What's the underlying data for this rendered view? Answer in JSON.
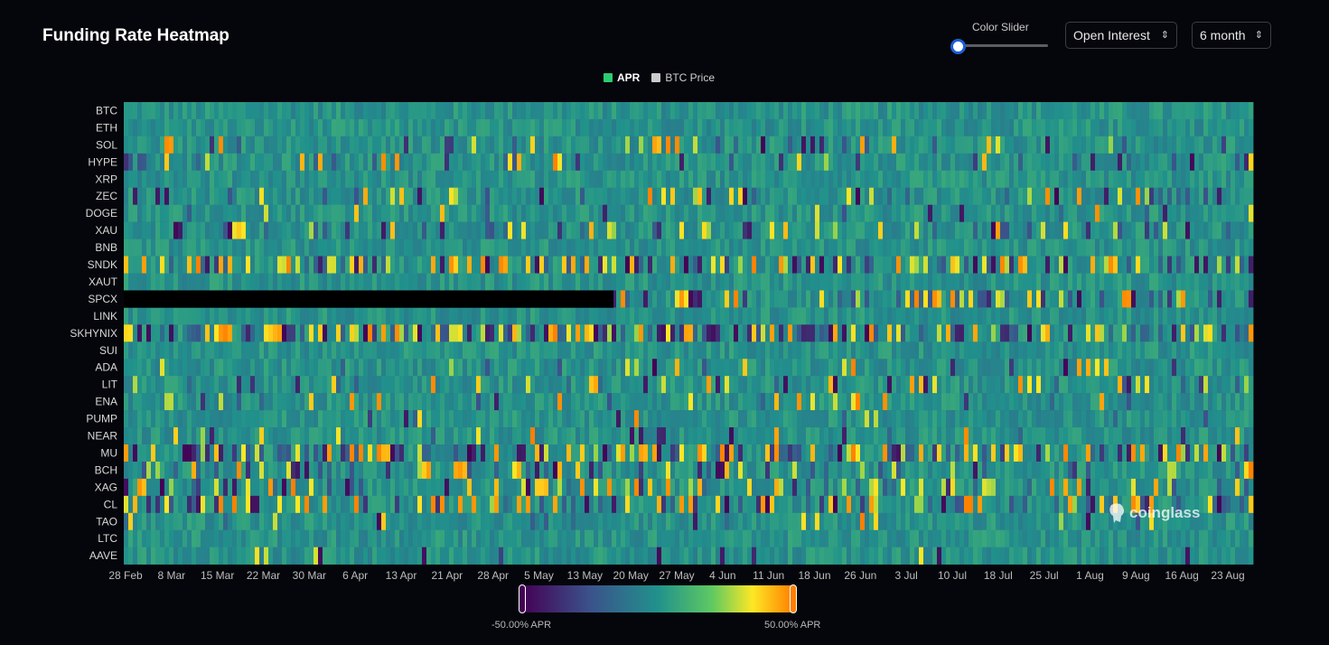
{
  "header": {
    "title": "Funding Rate Heatmap",
    "slider_label": "Color Slider",
    "metric_select": "Open Interest",
    "range_select": "6 month"
  },
  "legend": [
    {
      "label": "APR",
      "color": "#2ecc71",
      "active": true
    },
    {
      "label": "BTC Price",
      "color": "#cccccc",
      "active": false
    }
  ],
  "colors": {
    "background": "#05060b",
    "scale": [
      "#440154",
      "#3b528b",
      "#21918c",
      "#5ec962",
      "#fde725",
      "#ff7f00"
    ]
  },
  "brand": "coinglass",
  "colorbar": {
    "min_label": "-50.00% APR",
    "max_label": "50.00% APR"
  },
  "chart_data": {
    "type": "heatmap",
    "title": "Funding Rate Heatmap",
    "value_unit": "APR %",
    "value_range": [
      -50,
      50
    ],
    "rows": [
      "BTC",
      "ETH",
      "SOL",
      "HYPE",
      "XRP",
      "ZEC",
      "DOGE",
      "XAU",
      "BNB",
      "SNDK",
      "XAUT",
      "SPCX",
      "LINK",
      "SKHYNIX",
      "SUI",
      "ADA",
      "LIT",
      "ENA",
      "PUMP",
      "NEAR",
      "MU",
      "BCH",
      "XAG",
      "CL",
      "TAO",
      "LTC",
      "AAVE"
    ],
    "x_ticks": [
      "28 Feb",
      "8 Mar",
      "15 Mar",
      "22 Mar",
      "30 Mar",
      "6 Apr",
      "13 Apr",
      "21 Apr",
      "28 Apr",
      "5 May",
      "13 May",
      "20 May",
      "27 May",
      "4 Jun",
      "11 Jun",
      "18 Jun",
      "26 Jun",
      "3 Jul",
      "10 Jul",
      "18 Jul",
      "25 Jul",
      "1 Aug",
      "9 Aug",
      "16 Aug",
      "23 Aug"
    ],
    "no_data": [
      {
        "row": "SPCX",
        "from": "28 Feb",
        "to": "19 May"
      }
    ],
    "row_profiles": {
      "BTC": 0,
      "ETH": 0,
      "SOL": 0.2,
      "HYPE": 0.2,
      "XRP": 0,
      "ZEC": 0.3,
      "DOGE": 0.1,
      "XAU": 0.3,
      "BNB": 0,
      "SNDK": 0.6,
      "XAUT": 0,
      "SPCX": 0.5,
      "LINK": 0,
      "SKHYNIX": 0.8,
      "SUI": 0,
      "ADA": 0.1,
      "LIT": 0.2,
      "ENA": 0.1,
      "PUMP": 0.1,
      "NEAR": 0.1,
      "MU": 0.6,
      "BCH": 0.3,
      "XAG": 0.4,
      "CL": 0.5,
      "TAO": 0.1,
      "LTC": 0,
      "AAVE": 0.1
    }
  }
}
